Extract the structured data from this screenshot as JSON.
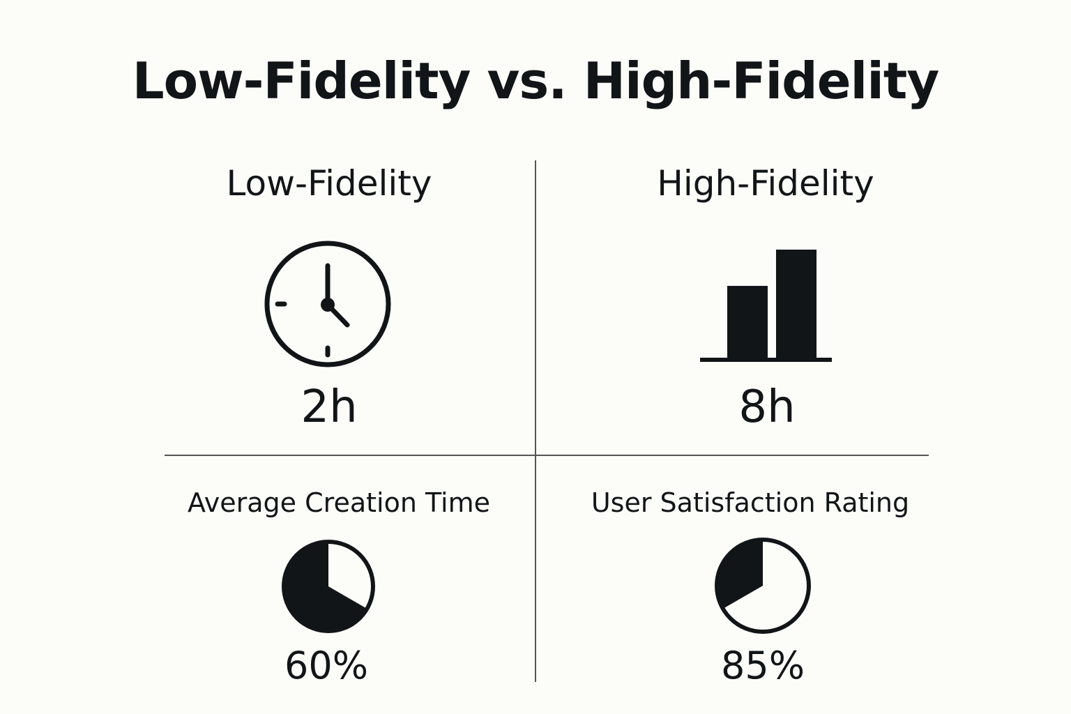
{
  "title": "Low-Fidelity vs. High-Fidelity",
  "low": {
    "heading": "Low-Fidelity",
    "icon": "clock-icon",
    "time": "2h",
    "metric_label": "Average Creation Time",
    "pie_icon": "pie-chart-icon",
    "percent": "60%",
    "percent_value": 60
  },
  "high": {
    "heading": "High-Fidelity",
    "icon": "bar-chart-icon",
    "time": "8h",
    "metric_label": "User Satisfaction Rating",
    "pie_icon": "pie-chart-icon",
    "percent": "85%",
    "percent_value": 85
  },
  "colors": {
    "ink": "#121517",
    "background": "#fcfcf9",
    "divider": "#555555"
  }
}
